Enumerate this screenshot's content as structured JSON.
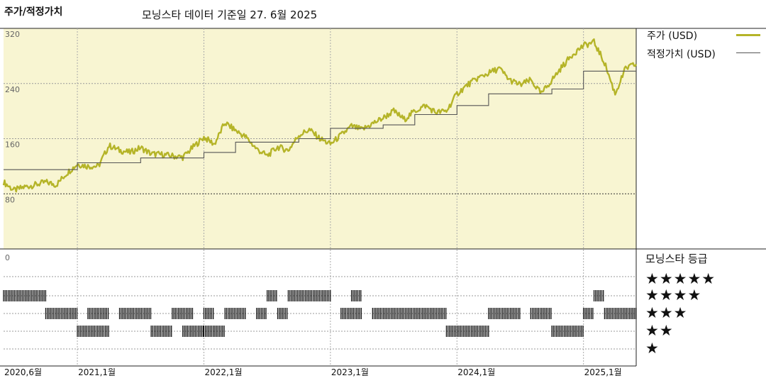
{
  "header": {
    "title": "주가/적정가치",
    "subtitle": "모닝스타 데이터 기준일 27. 6월 2025"
  },
  "legend": {
    "price_label": "주가 (USD)",
    "fair_label": "적정가치 (USD)"
  },
  "rating": {
    "title": "모닝스타 등급",
    "stars": [
      "★★★★★",
      "★★★★",
      "★★★",
      "★★",
      "★"
    ]
  },
  "colors": {
    "price": "#b5b428",
    "fair": "#555555",
    "plot_bg": "#f8f5d2"
  },
  "chart_data": {
    "type": "line",
    "x_range": [
      "2020-06",
      "2025-06"
    ],
    "ylim": [
      0,
      320
    ],
    "y_ticks": [
      0,
      80,
      160,
      240,
      320
    ],
    "y_tick_labels": [
      "0",
      "80",
      "160",
      "240",
      "320"
    ],
    "x_tick_labels": [
      "2020,6월",
      "2021,1월",
      "2022,1월",
      "2023,1월",
      "2024,1월",
      "2025,1월"
    ],
    "grid": true,
    "legend_position": "right",
    "series": [
      {
        "name": "주가 (USD)",
        "points": [
          [
            "2020-06",
            97
          ],
          [
            "2020-07",
            85
          ],
          [
            "2020-08",
            90
          ],
          [
            "2020-09",
            93
          ],
          [
            "2020-10",
            97
          ],
          [
            "2020-11",
            93
          ],
          [
            "2020-12",
            110
          ],
          [
            "2021-01",
            123
          ],
          [
            "2021-02",
            120
          ],
          [
            "2021-03",
            120
          ],
          [
            "2021-04",
            150
          ],
          [
            "2021-05",
            143
          ],
          [
            "2021-06",
            140
          ],
          [
            "2021-07",
            147
          ],
          [
            "2021-08",
            138
          ],
          [
            "2021-09",
            137
          ],
          [
            "2021-10",
            135
          ],
          [
            "2021-11",
            133
          ],
          [
            "2021-12",
            148
          ],
          [
            "2022-01",
            162
          ],
          [
            "2022-02",
            152
          ],
          [
            "2022-03",
            183
          ],
          [
            "2022-04",
            172
          ],
          [
            "2022-05",
            162
          ],
          [
            "2022-06",
            145
          ],
          [
            "2022-07",
            135
          ],
          [
            "2022-08",
            148
          ],
          [
            "2022-09",
            143
          ],
          [
            "2022-10",
            165
          ],
          [
            "2022-11",
            173
          ],
          [
            "2022-12",
            160
          ],
          [
            "2023-01",
            152
          ],
          [
            "2023-02",
            165
          ],
          [
            "2023-03",
            178
          ],
          [
            "2023-04",
            173
          ],
          [
            "2023-05",
            182
          ],
          [
            "2023-06",
            190
          ],
          [
            "2023-07",
            200
          ],
          [
            "2023-08",
            188
          ],
          [
            "2023-09",
            200
          ],
          [
            "2023-10",
            208
          ],
          [
            "2023-11",
            198
          ],
          [
            "2023-12",
            200
          ],
          [
            "2024-01",
            225
          ],
          [
            "2024-02",
            238
          ],
          [
            "2024-03",
            248
          ],
          [
            "2024-04",
            255
          ],
          [
            "2024-05",
            262
          ],
          [
            "2024-06",
            245
          ],
          [
            "2024-07",
            238
          ],
          [
            "2024-08",
            245
          ],
          [
            "2024-09",
            225
          ],
          [
            "2024-10",
            245
          ],
          [
            "2024-11",
            265
          ],
          [
            "2024-12",
            283
          ],
          [
            "2025-01",
            295
          ],
          [
            "2025-02",
            300
          ],
          [
            "2025-03",
            270
          ],
          [
            "2025-04",
            225
          ],
          [
            "2025-05",
            262
          ],
          [
            "2025-06",
            268
          ]
        ]
      },
      {
        "name": "적정가치 (USD)",
        "points": [
          [
            "2020-06",
            115
          ],
          [
            "2021-01",
            115
          ],
          [
            "2021-01",
            125
          ],
          [
            "2021-07",
            125
          ],
          [
            "2021-07",
            132
          ],
          [
            "2022-01",
            132
          ],
          [
            "2022-01",
            140
          ],
          [
            "2022-04",
            140
          ],
          [
            "2022-04",
            155
          ],
          [
            "2022-10",
            155
          ],
          [
            "2022-10",
            160
          ],
          [
            "2023-01",
            160
          ],
          [
            "2023-01",
            175
          ],
          [
            "2023-06",
            175
          ],
          [
            "2023-06",
            180
          ],
          [
            "2023-09",
            180
          ],
          [
            "2023-09",
            195
          ],
          [
            "2024-01",
            195
          ],
          [
            "2024-01",
            208
          ],
          [
            "2024-04",
            208
          ],
          [
            "2024-04",
            225
          ],
          [
            "2024-10",
            225
          ],
          [
            "2024-10",
            232
          ],
          [
            "2025-01",
            232
          ],
          [
            "2025-01",
            258
          ],
          [
            "2025-06",
            258
          ]
        ]
      }
    ],
    "rating_bands": [
      {
        "stars": 5,
        "segments": []
      },
      {
        "stars": 4,
        "segments": [
          [
            "2020-06",
            "2020-10"
          ],
          [
            "2022-07",
            "2022-08"
          ],
          [
            "2022-09",
            "2023-01"
          ],
          [
            "2023-03",
            "2023-04"
          ],
          [
            "2025-02",
            "2025-03"
          ]
        ]
      },
      {
        "stars": 3,
        "segments": [
          [
            "2020-10",
            "2021-01"
          ],
          [
            "2021-02",
            "2021-04"
          ],
          [
            "2021-05",
            "2021-08"
          ],
          [
            "2021-10",
            "2021-12"
          ],
          [
            "2022-01",
            "2022-02"
          ],
          [
            "2022-03",
            "2022-05"
          ],
          [
            "2022-06",
            "2022-07"
          ],
          [
            "2022-08",
            "2022-09"
          ],
          [
            "2023-02",
            "2023-04"
          ],
          [
            "2023-05",
            "2023-12"
          ],
          [
            "2024-04",
            "2024-07"
          ],
          [
            "2024-08",
            "2024-10"
          ],
          [
            "2025-01",
            "2025-02"
          ],
          [
            "2025-03",
            "2025-06"
          ]
        ]
      },
      {
        "stars": 2,
        "segments": [
          [
            "2021-01",
            "2021-04"
          ],
          [
            "2021-08",
            "2021-10"
          ],
          [
            "2021-11",
            "2022-01"
          ],
          [
            "2022-01",
            "2022-03"
          ],
          [
            "2023-12",
            "2024-04"
          ],
          [
            "2024-10",
            "2025-01"
          ]
        ]
      },
      {
        "stars": 1,
        "segments": []
      }
    ]
  }
}
